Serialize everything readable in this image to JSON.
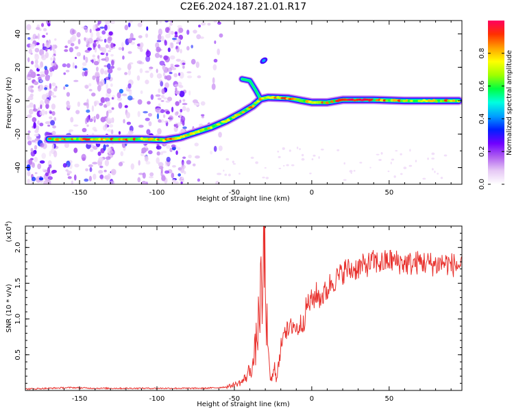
{
  "title": "C2E6.2024.187.21.01.R17",
  "chart_data": [
    {
      "type": "heatmap",
      "xlabel": "Height of straight line (km)",
      "ylabel": "Frequency (Hz)",
      "xlim": [
        -185,
        97
      ],
      "ylim": [
        -50,
        48
      ],
      "xticks": [
        -150,
        -100,
        -50,
        0,
        50
      ],
      "yticks": [
        -40,
        -20,
        0,
        20,
        40
      ],
      "colorbar": {
        "label": "Normalized spectral amplitude",
        "range": [
          0,
          1
        ],
        "ticks": [
          "0.0",
          "0.2",
          "0.4",
          "0.6",
          "0.8"
        ],
        "colors": [
          "#ffffff",
          "#e6c8f5",
          "#b060f0",
          "#7000ff",
          "#0020ff",
          "#00a0ff",
          "#00ffe0",
          "#00ff40",
          "#a0ff00",
          "#ffff00",
          "#ffa000",
          "#ff3000",
          "#ff0060"
        ]
      },
      "ridge": [
        [
          -170,
          -23
        ],
        [
          -150,
          -23
        ],
        [
          -130,
          -23
        ],
        [
          -110,
          -23
        ],
        [
          -95,
          -23.5
        ],
        [
          -85,
          -22
        ],
        [
          -75,
          -19
        ],
        [
          -65,
          -16
        ],
        [
          -55,
          -12
        ],
        [
          -45,
          -7
        ],
        [
          -38,
          -3
        ],
        [
          -33,
          1
        ],
        [
          -28,
          2
        ],
        [
          -15,
          1.5
        ],
        [
          0,
          -1
        ],
        [
          10,
          -1
        ],
        [
          20,
          0.5
        ],
        [
          40,
          0.5
        ],
        [
          60,
          0
        ],
        [
          80,
          0
        ],
        [
          95,
          0
        ]
      ],
      "branch": [
        [
          -45,
          13
        ],
        [
          -40,
          12
        ],
        [
          -36,
          6
        ],
        [
          -33,
          1
        ]
      ],
      "blob": [
        -31,
        24
      ]
    },
    {
      "type": "line",
      "xlabel": "Height of straight line (km)",
      "ylabel": "SNR (10 * v/v)",
      "yscale_note": "(x10",
      "yscale_exp": "4",
      "yscale_close": ")",
      "xlim": [
        -185,
        97
      ],
      "ylim": [
        0,
        2.3
      ],
      "xticks": [
        -150,
        -100,
        -50,
        0,
        50
      ],
      "yticks": [
        0.5,
        1.0,
        1.5,
        2.0
      ],
      "ytick_labels": [
        "0.5",
        "1.0",
        "1.5",
        "2.0"
      ],
      "series": [
        {
          "color": "#e8302c",
          "x": [
            -185,
            -170,
            -155,
            -140,
            -125,
            -110,
            -95,
            -80,
            -70,
            -60,
            -55,
            -50,
            -45,
            -42,
            -40,
            -38,
            -35,
            -33,
            -32,
            -31,
            -30,
            -29,
            -28,
            -27,
            -26,
            -25,
            -24,
            -23,
            -22,
            -21,
            -20,
            -18,
            -15,
            -12,
            -10,
            -8,
            -5,
            -3,
            0,
            3,
            5,
            8,
            10,
            12,
            15,
            18,
            20,
            22,
            25,
            30,
            35,
            40,
            45,
            50,
            55,
            60,
            65,
            70,
            75,
            80,
            85,
            90,
            95
          ],
          "y": [
            0.02,
            0.03,
            0.04,
            0.03,
            0.03,
            0.03,
            0.03,
            0.03,
            0.03,
            0.04,
            0.05,
            0.08,
            0.12,
            0.2,
            0.3,
            0.35,
            0.8,
            1.4,
            1.0,
            2.2,
            1.5,
            0.9,
            0.4,
            0.2,
            0.15,
            0.2,
            0.3,
            0.2,
            0.3,
            0.35,
            0.6,
            0.9,
            0.8,
            0.95,
            0.85,
            0.9,
            1.0,
            1.2,
            1.25,
            1.35,
            1.3,
            1.35,
            1.4,
            1.5,
            1.55,
            1.6,
            1.65,
            1.7,
            1.68,
            1.72,
            1.75,
            1.8,
            1.78,
            1.82,
            1.8,
            1.78,
            1.77,
            1.8,
            1.78,
            1.76,
            1.79,
            1.76,
            1.75
          ]
        }
      ]
    }
  ]
}
